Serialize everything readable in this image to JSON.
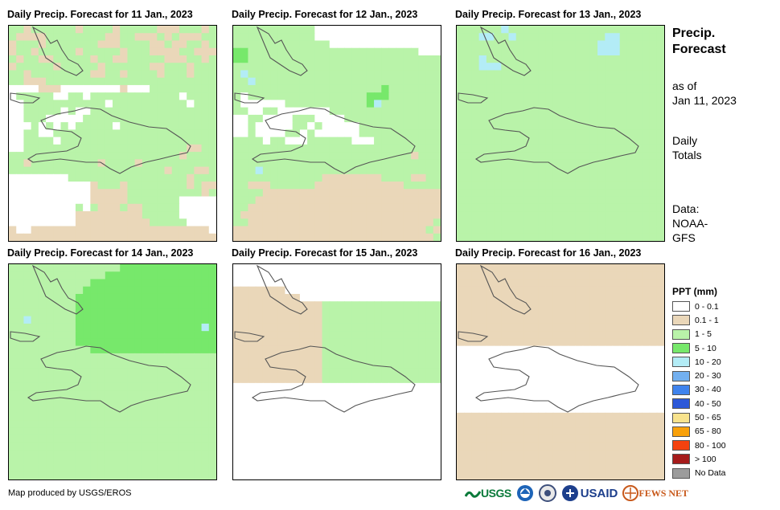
{
  "panels": [
    {
      "title": "Daily Precip. Forecast for 11 Jan., 2023",
      "date": "11 Jan., 2023"
    },
    {
      "title": "Daily Precip. Forecast for 12 Jan., 2023",
      "date": "12 Jan., 2023"
    },
    {
      "title": "Daily Precip. Forecast for 13 Jan., 2023",
      "date": "13 Jan., 2023"
    },
    {
      "title": "Daily Precip. Forecast for 14 Jan., 2023",
      "date": "14 Jan., 2023"
    },
    {
      "title": "Daily Precip. Forecast for 15 Jan., 2023",
      "date": "15 Jan., 2023"
    },
    {
      "title": "Daily Precip. Forecast for 16 Jan., 2023",
      "date": "16 Jan., 2023"
    }
  ],
  "sidebar": {
    "title_line1": "Precip.",
    "title_line2": "Forecast",
    "asof_line1": "as of",
    "asof_line2": "Jan 11, 2023",
    "daily_line1": "Daily",
    "daily_line2": "Totals",
    "data_line1": "Data:",
    "data_line2": "NOAA-",
    "data_line3": "GFS"
  },
  "legend": {
    "title": "PPT (mm)",
    "items": [
      {
        "label": "0 - 0.1",
        "color": "#ffffff"
      },
      {
        "label": "0.1 - 1",
        "color": "#ead7b9"
      },
      {
        "label": "1 - 5",
        "color": "#b9f3a9"
      },
      {
        "label": "5 - 10",
        "color": "#77e86b"
      },
      {
        "label": "10 - 20",
        "color": "#b3ecf6"
      },
      {
        "label": "20 - 30",
        "color": "#73b0f0"
      },
      {
        "label": "30 - 40",
        "color": "#3f83ed"
      },
      {
        "label": "40 - 50",
        "color": "#2c58d8"
      },
      {
        "label": "50 - 65",
        "color": "#f8e38d"
      },
      {
        "label": "65 - 80",
        "color": "#f9a10a"
      },
      {
        "label": "80 - 100",
        "color": "#f4420f"
      },
      {
        "label": "> 100",
        "color": "#a51b1b"
      },
      {
        "label": "No Data",
        "color": "#9c9c9c"
      }
    ]
  },
  "footer": {
    "credit": "Map produced by USGS/EROS",
    "logo_usgs": "USGS",
    "logo_usaid": "USAID",
    "logo_fewsnet": "FEWS NET"
  },
  "map_grid": {
    "cols": 28,
    "rows": 29,
    "palette": [
      "#ffffff",
      "#ead7b9",
      "#b9f3a9",
      "#77e86b",
      "#b3ecf6"
    ],
    "fields": [
      [
        "2212222221222212222211122212",
        "2111122222222112211121211122",
        "1222122222221112222112112212",
        "1221222221222221222111122111",
        "2122112222212211222221112212",
        "1222221222221222222112221222",
        "2212222222211221222212221222",
        "2211122222222222222222222222",
        "0000111000000001000222222222",
        "0222220022022222222222202222",
        "0022222222222022222222220222",
        "0022222020022222222222222222",
        "0022200000222222222222222222",
        "0002020202222202222222222222",
        "0022002222222222222222222222",
        "0022220222222222222222222222",
        "0022222222222222222222221122",
        "2222222222222222222222212222",
        "2212222222221222212222222222",
        "2222222222222222222221222112",
        "0000000022222222222222221222",
        "0000000000012221222222221211",
        "0000000000011111222222222212",
        "0000000000011111222222200000",
        "0000000002021112112222200000",
        "0000000001111111112222200000",
        "0000000001111111111222220000",
        "1001111111111111111111111110",
        "1111111111111111111111111111"
      ],
      [
        "2222222222200000000000000000",
        "2222222222200000000000000000",
        "2222222222222000000000000000",
        "3322222222222222222222222000",
        "3322222222222222222222222222",
        "2222222222222222222222222222",
        "2422222222222222222222222222",
        "2242222222222222222222222222",
        "2222222222222222222232222222",
        "2022222222222222223332222222",
        "2000000222222222223422222222",
        "2200220000000222222222222222",
        "0022000022200002222222222222",
        "0020000022020000022222222222",
        "0020000220200000022222222222",
        "2222022000222222000222222222",
        "2222222222222222222222222222",
        "2222222222222222222222221222",
        "2222222222222222222222222222",
        "2224222222222222222222222222",
        "2222222222221111111122221122",
        "2211122222211111111111122222",
        "2222111111111111111111111111",
        "2221111111111111111111111111",
        "2211111111111111111111111111",
        "2111111111111111111111111111",
        "2211111111111111111111111112",
        "1111111111111111111111111121",
        "1111111111111111111111111112"
      ],
      [
        "2222224222222222222222222222",
        "2224422422222222222244222222",
        "2222222222222222222444222222",
        "2222222222222222222444222222",
        "2224222222222222222222222222",
        "2224442222222222222222222222",
        "2222222222222222222222222222",
        "2222222222222222222222222222",
        "2222222222222222222222222222",
        "2222222222222222222222222222",
        "2222222222222222222222222222",
        "2222222222222222222222222222",
        "2222222222222222222222222222",
        "2222222222222222222222222222",
        "2222222222222222222222222222",
        "2222222222222222222222222222",
        "2222222222222222222222222222",
        "2222222222222222222222222222",
        "2222222222222222222222222222",
        "2222222222222222222222222222",
        "2222222222222222222222222222",
        "2222222222222222222222222222",
        "2222222222222222222222222222",
        "2222222222222222222222222222",
        "2222222222222222222222222222",
        "2222222222222222222222222222",
        "2222222222222222222222222222",
        "2222222222222222222222222222",
        "2222222222222222222222222222"
      ],
      [
        "2222222222222223333333333333",
        "2222222222222333333333333333",
        "2222222222233333333333333333",
        "2222222222333333333333333333",
        "2222222223333333333333333333",
        "2222222223333333333333333333",
        "2222222223333333333333333333",
        "2242222223333333333333333333",
        "2222222223333333333333333343",
        "2222222223333333333333333333",
        "2222222223333333333333333333",
        "2222222222233333333333333333",
        "2222222222222222222222222222",
        "2222222222222222222222222222",
        "2222222222222222222222222222",
        "2222222222222222222222222222",
        "2222222222222222222222222222",
        "2222222222222222222222222222",
        "2222222222222222222222222222",
        "2222222222222222222222222222",
        "2222222222222222222222222222",
        "2222222222222222222222222222",
        "2222222222222222222222222222",
        "2222222222222222222222222222",
        "2222222222222222222222222222",
        "2222222222222222222222222222",
        "2222222222222222222222222222",
        "2222222222222222222222222222",
        "2222222222222222222222222222"
      ],
      [
        "0000000000000000000000000000",
        "0000000000000000000000000000",
        "0000000000000000000000000000",
        "1111111000000000000000000000",
        "1111111110000000000000000000",
        "1111111111112222222222222222",
        "1111111111112222222222222222",
        "1111111111112222222222222222",
        "1111111111112222222222222222",
        "1111111111112222222222222222",
        "1111111111112222222222222222",
        "1111111111112222222222222222",
        "1111111111112222222222222222",
        "1111111111112222222222222222",
        "1111111111112222222222222222",
        "1111111111112222222222222222",
        "0000000000000000000000000000",
        "0000000000000000000000000000",
        "0000000000000000000000000000",
        "0000000000000000000000000000",
        "0000000000000000000000000000",
        "0000000000000000000000000000",
        "0000000000000000000000000000",
        "0000000000000000000000000000",
        "0000000000000000000000000000",
        "0000000000000000000000000000",
        "0000000000000000000000000000",
        "0000000000000000000000000000",
        "0000000000000000000000000000"
      ],
      [
        "1111111111111111111111111111",
        "1111111111111111111111111111",
        "1111111111111111111111111111",
        "1111111111111111111111111111",
        "1111111111111111111111111111",
        "1111111111111111111111111111",
        "1111111111111111111111111111",
        "1111111111111111111111111111",
        "1111111111111111111111111111",
        "1111111111111111111111111111",
        "1111111111111111111111111111",
        "0000000000000000000000000000",
        "0000000000000000000000000000",
        "0000000000000000000000000000",
        "0000000000000000000000000000",
        "0000000000000000000000000000",
        "0000000000000000000000000000",
        "0000000000000000000000000000",
        "0000000000000000000000000000",
        "0000000000000000000000000000",
        "1111111111111111111111111111",
        "1111111111111111111111111111",
        "1111111111111111111111111111",
        "1111111111111111111111111111",
        "1111111111111111111111111111",
        "1111111111111111111111111111",
        "1111111111111111111111111111",
        "1111111111111111111111111111",
        "1111111111111111111111111111"
      ]
    ]
  }
}
